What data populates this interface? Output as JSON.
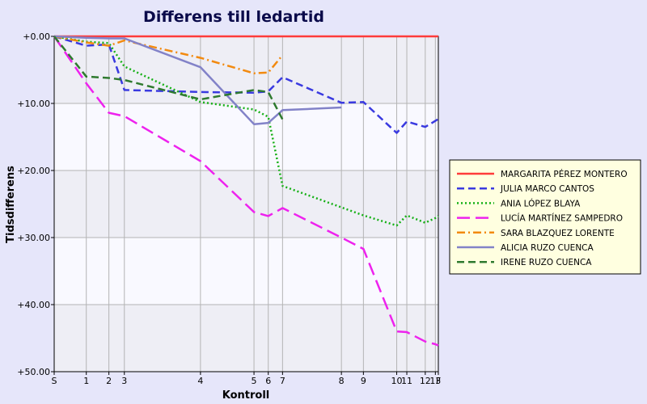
{
  "chart_data": {
    "type": "line",
    "title": "Differens till ledartid",
    "xlabel": "Kontroll",
    "ylabel": "Tidsdifferens",
    "y_ticks": [
      {
        "value": 0,
        "label": "+0.00"
      },
      {
        "value": 10,
        "label": "+10.00"
      },
      {
        "value": 20,
        "label": "+20.00"
      },
      {
        "value": 30,
        "label": "+30.00"
      },
      {
        "value": 40,
        "label": "+40.00"
      },
      {
        "value": 50,
        "label": "+50.00"
      }
    ],
    "ylim": [
      0,
      50
    ],
    "y_inverted": true,
    "x_ticks": [
      {
        "value": 0,
        "label": "S"
      },
      {
        "value": 5.4,
        "label": "1"
      },
      {
        "value": 9.2,
        "label": "2"
      },
      {
        "value": 11.8,
        "label": "3"
      },
      {
        "value": 24.6,
        "label": "4"
      },
      {
        "value": 33.6,
        "label": "5"
      },
      {
        "value": 36.0,
        "label": "6"
      },
      {
        "value": 38.4,
        "label": "7"
      },
      {
        "value": 48.3,
        "label": "8"
      },
      {
        "value": 52.0,
        "label": "9"
      },
      {
        "value": 57.6,
        "label": "10"
      },
      {
        "value": 59.3,
        "label": "11"
      },
      {
        "value": 62.4,
        "label": "12"
      },
      {
        "value": 64.1,
        "label": "13"
      },
      {
        "value": 64.6,
        "label": "F"
      }
    ],
    "xlim": [
      0,
      64.6
    ],
    "grid": true,
    "legend_position": "right",
    "series": [
      {
        "name": "MARGARITA PÉREZ MONTERO",
        "color": "#ff3b3b",
        "dash": "solid",
        "points": [
          [
            0,
            0
          ],
          [
            5.4,
            0
          ],
          [
            9.2,
            0
          ],
          [
            11.8,
            0
          ],
          [
            24.6,
            0
          ],
          [
            33.6,
            0
          ],
          [
            36.0,
            0
          ],
          [
            38.4,
            0
          ],
          [
            48.3,
            0
          ],
          [
            52.0,
            0
          ],
          [
            57.6,
            0
          ],
          [
            59.3,
            0
          ],
          [
            62.4,
            0
          ],
          [
            64.1,
            0
          ],
          [
            64.6,
            0
          ]
        ]
      },
      {
        "name": "JULIA MARCO CANTOS",
        "color": "#3a3ae0",
        "dash": "dashed",
        "points": [
          [
            0,
            0
          ],
          [
            5.4,
            1.4
          ],
          [
            9.2,
            1.2
          ],
          [
            11.8,
            8.0
          ],
          [
            24.6,
            8.3
          ],
          [
            33.6,
            8.4
          ],
          [
            36.0,
            8.2
          ],
          [
            38.4,
            6.1
          ],
          [
            48.3,
            9.9
          ],
          [
            52.0,
            9.8
          ],
          [
            57.6,
            14.4
          ],
          [
            59.3,
            12.7
          ],
          [
            62.4,
            13.5
          ],
          [
            64.1,
            12.6
          ],
          [
            64.6,
            12.3
          ]
        ]
      },
      {
        "name": "ANIA LÓPEZ BLAYA",
        "color": "#16b016",
        "dash": "dotted",
        "points": [
          [
            0,
            0
          ],
          [
            5.4,
            0.8
          ],
          [
            9.2,
            1.0
          ],
          [
            11.8,
            4.5
          ],
          [
            24.6,
            9.8
          ],
          [
            33.6,
            10.9
          ],
          [
            36.0,
            12.0
          ],
          [
            38.4,
            22.3
          ],
          [
            48.3,
            25.5
          ],
          [
            52.0,
            26.7
          ],
          [
            57.6,
            28.2
          ],
          [
            59.3,
            26.7
          ],
          [
            62.4,
            27.8
          ],
          [
            64.1,
            27.1
          ],
          [
            64.6,
            26.8
          ]
        ]
      },
      {
        "name": "LUCÍA MARTÍNEZ SAMPEDRO",
        "color": "#ee22ee",
        "dash": "longdash",
        "points": [
          [
            0,
            0
          ],
          [
            5.4,
            7.0
          ],
          [
            9.2,
            11.4
          ],
          [
            11.8,
            11.9
          ],
          [
            24.6,
            18.6
          ],
          [
            33.6,
            26.2
          ],
          [
            36.0,
            26.8
          ],
          [
            38.4,
            25.6
          ],
          [
            48.3,
            30.0
          ],
          [
            52.0,
            31.7
          ],
          [
            57.6,
            44.0
          ],
          [
            59.3,
            44.1
          ],
          [
            62.4,
            45.5
          ],
          [
            64.1,
            45.9
          ],
          [
            64.6,
            46.1
          ]
        ]
      },
      {
        "name": "SARA BLAZQUEZ LORENTE",
        "color": "#f28a10",
        "dash": "dashdot",
        "points": [
          [
            0,
            0
          ],
          [
            5.4,
            0.9
          ],
          [
            9.2,
            1.4
          ],
          [
            11.8,
            0.6
          ],
          [
            24.6,
            3.2
          ],
          [
            33.6,
            5.5
          ],
          [
            36.0,
            5.4
          ],
          [
            38.4,
            2.8
          ]
        ]
      },
      {
        "name": "ALICIA RUZO CUENCA",
        "color": "#8282c8",
        "dash": "solid",
        "points": [
          [
            0,
            0
          ],
          [
            5.4,
            0.2
          ],
          [
            9.2,
            0.3
          ],
          [
            11.8,
            0.3
          ],
          [
            24.6,
            4.6
          ],
          [
            33.6,
            13.1
          ],
          [
            36.0,
            12.9
          ],
          [
            38.4,
            11.0
          ],
          [
            48.3,
            10.6
          ]
        ]
      },
      {
        "name": "IRENE RUZO CUENCA",
        "color": "#2f7a2f",
        "dash": "dashed",
        "points": [
          [
            0,
            0
          ],
          [
            5.4,
            6.0
          ],
          [
            9.2,
            6.2
          ],
          [
            11.8,
            6.5
          ],
          [
            24.6,
            9.4
          ],
          [
            33.6,
            8.0
          ],
          [
            36.0,
            8.3
          ],
          [
            38.4,
            12.4
          ]
        ]
      }
    ]
  }
}
